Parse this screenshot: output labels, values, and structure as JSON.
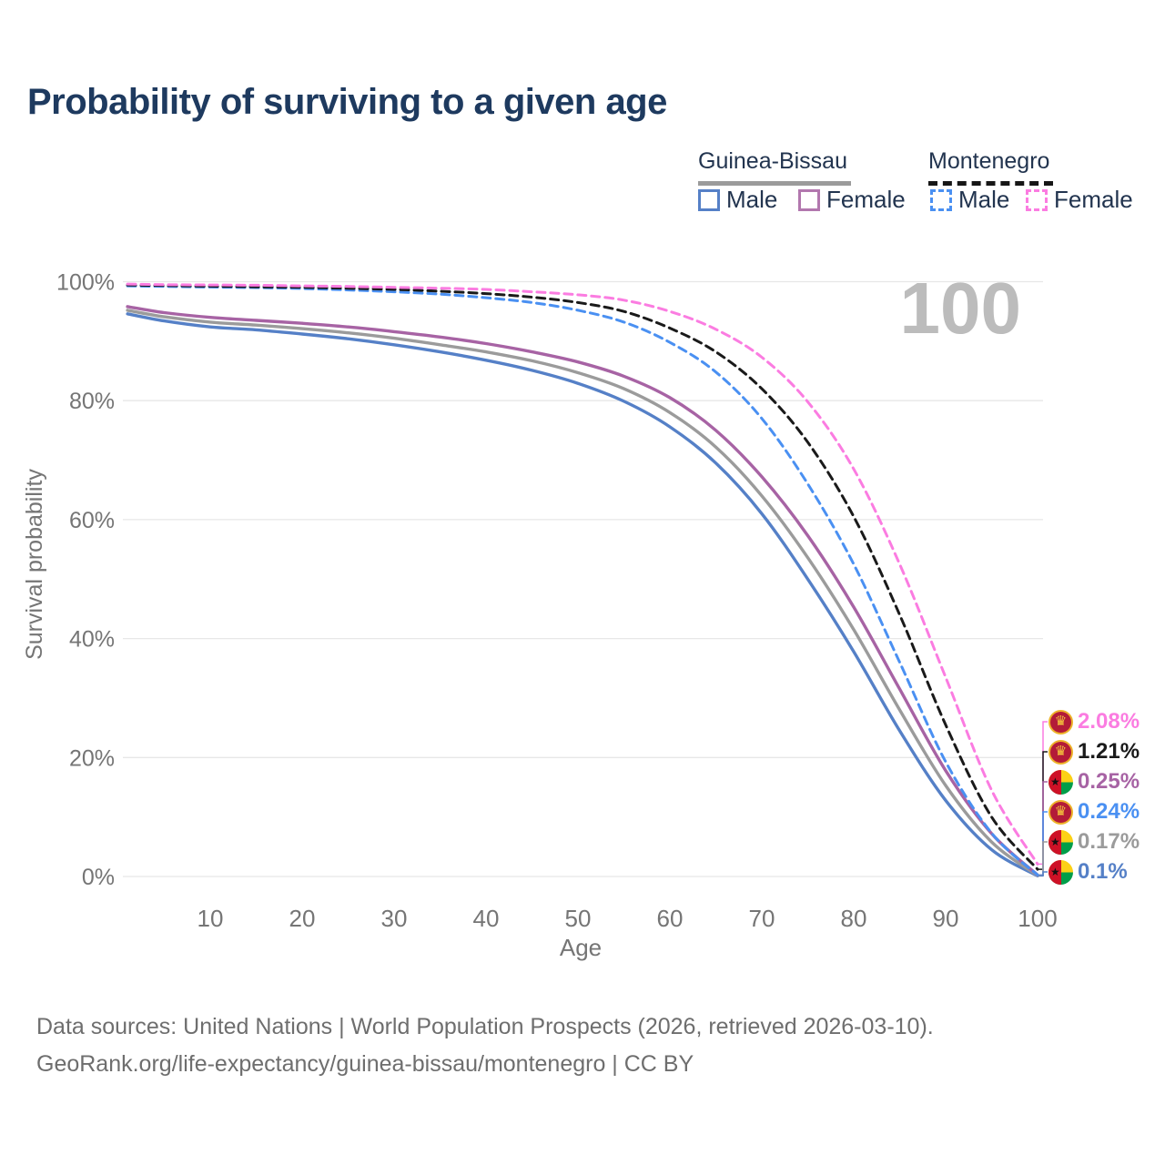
{
  "title": "Probability of surviving to a given age",
  "legend": {
    "groups": [
      {
        "name": "Guinea-Bissau",
        "line_style": "solid",
        "line_color": "#9b9b9b",
        "items": [
          {
            "label": "Male",
            "color": "#5580c7"
          },
          {
            "label": "Female",
            "color": "#b277ae"
          }
        ]
      },
      {
        "name": "Montenegro",
        "line_style": "dashed",
        "line_color": "#161616",
        "items": [
          {
            "label": "Male",
            "color": "#4a90f2"
          },
          {
            "label": "Female",
            "color": "#fb7ce1"
          }
        ]
      }
    ]
  },
  "annotation": {
    "age_counter": "100"
  },
  "chart_data": {
    "type": "line",
    "title": "Probability of surviving to a given age",
    "xlabel": "Age",
    "ylabel": "Survival probability",
    "xlim": [
      0,
      100
    ],
    "ylim": [
      0,
      100
    ],
    "grid": true,
    "x_ticks": [
      10,
      20,
      30,
      40,
      50,
      60,
      70,
      80,
      90,
      100
    ],
    "y_ticks": [
      {
        "label": "100%",
        "value": 100
      },
      {
        "label": "80%",
        "value": 80
      },
      {
        "label": "60%",
        "value": 60
      },
      {
        "label": "40%",
        "value": 40
      },
      {
        "label": "20%",
        "value": 20
      },
      {
        "label": "0%",
        "value": 0
      }
    ],
    "ages": [
      1,
      5,
      10,
      15,
      20,
      25,
      30,
      35,
      40,
      45,
      50,
      55,
      60,
      65,
      70,
      75,
      80,
      85,
      90,
      95,
      100
    ],
    "series": [
      {
        "name": "Guinea-Bissau Male",
        "country": "Guinea-Bissau",
        "sex": "Male",
        "color": "#5580c7",
        "dashed": false,
        "end_value": "0.1%",
        "values": [
          94.6,
          93.4,
          92.4,
          91.9,
          91.2,
          90.4,
          89.4,
          88.2,
          86.8,
          85.1,
          82.9,
          79.9,
          75.6,
          69.5,
          61.0,
          50.0,
          37.8,
          24.5,
          12.8,
          4.5,
          0.1
        ]
      },
      {
        "name": "Guinea-Bissau Both sexes",
        "country": "Guinea-Bissau",
        "sex": "Both",
        "color": "#9b9b9b",
        "dashed": false,
        "end_value": "0.17%",
        "values": [
          95.2,
          94.1,
          93.2,
          92.7,
          92.1,
          91.4,
          90.5,
          89.4,
          88.2,
          86.7,
          84.7,
          82.0,
          78.0,
          72.2,
          64.0,
          53.6,
          41.5,
          28.0,
          15.3,
          5.8,
          0.17
        ]
      },
      {
        "name": "Guinea-Bissau Female",
        "country": "Guinea-Bissau",
        "sex": "Female",
        "color": "#a763a4",
        "dashed": false,
        "end_value": "0.25%",
        "values": [
          95.8,
          94.8,
          94.0,
          93.5,
          93.0,
          92.4,
          91.6,
          90.7,
          89.6,
          88.2,
          86.5,
          84.1,
          80.5,
          75.0,
          67.2,
          57.3,
          45.3,
          31.5,
          17.8,
          7.2,
          0.25
        ]
      },
      {
        "name": "Montenegro Male",
        "country": "Montenegro",
        "sex": "Male",
        "color": "#4a90f2",
        "dashed": true,
        "end_value": "0.24%",
        "values": [
          99.3,
          99.2,
          99.1,
          99.0,
          98.85,
          98.6,
          98.3,
          97.9,
          97.3,
          96.5,
          95.2,
          93.2,
          89.8,
          84.8,
          77.0,
          66.0,
          52.5,
          36.0,
          19.3,
          7.3,
          0.24
        ]
      },
      {
        "name": "Montenegro Both sexes",
        "country": "Montenegro",
        "sex": "Both",
        "color": "#1a1a1a",
        "dashed": true,
        "end_value": "1.21%",
        "values": [
          99.45,
          99.35,
          99.25,
          99.15,
          99.05,
          98.9,
          98.7,
          98.4,
          98.0,
          97.4,
          96.5,
          95.0,
          92.2,
          88.2,
          82.0,
          73.0,
          60.5,
          44.0,
          25.5,
          10.0,
          1.21
        ]
      },
      {
        "name": "Montenegro Female",
        "country": "Montenegro",
        "sex": "Female",
        "color": "#fb7ce1",
        "dashed": true,
        "end_value": "2.08%",
        "values": [
          99.6,
          99.5,
          99.45,
          99.4,
          99.3,
          99.2,
          99.05,
          98.9,
          98.7,
          98.3,
          97.8,
          96.9,
          95.0,
          92.0,
          87.3,
          79.8,
          68.5,
          52.5,
          33.5,
          14.5,
          2.08
        ]
      }
    ],
    "endpoint_labels": [
      {
        "value": "2.08%",
        "flag": "montenegro",
        "color": "#fb7ce1",
        "series_index": 5
      },
      {
        "value": "1.21%",
        "flag": "montenegro",
        "color": "#1a1a1a",
        "series_index": 4
      },
      {
        "value": "0.25%",
        "flag": "guinea-bissau",
        "color": "#a763a4",
        "series_index": 2
      },
      {
        "value": "0.24%",
        "flag": "montenegro",
        "color": "#4a90f2",
        "series_index": 3
      },
      {
        "value": "0.17%",
        "flag": "guinea-bissau",
        "color": "#9b9b9b",
        "series_index": 1
      },
      {
        "value": "0.1%",
        "flag": "guinea-bissau",
        "color": "#5580c7",
        "series_index": 0
      }
    ],
    "legend_position": "top-right"
  },
  "sources": {
    "line1": "Data sources: United Nations | World Population Prospects (2026, retrieved 2026-03-10).",
    "line2": "GeoRank.org/life-expectancy/guinea-bissau/montenegro | CC BY"
  },
  "colors": {
    "title": "#1e3a5f",
    "tick_text": "#757575",
    "gridline": "#e7e7e7",
    "watermark": "#bcbcbc",
    "source_text": "#6e6e6e"
  }
}
